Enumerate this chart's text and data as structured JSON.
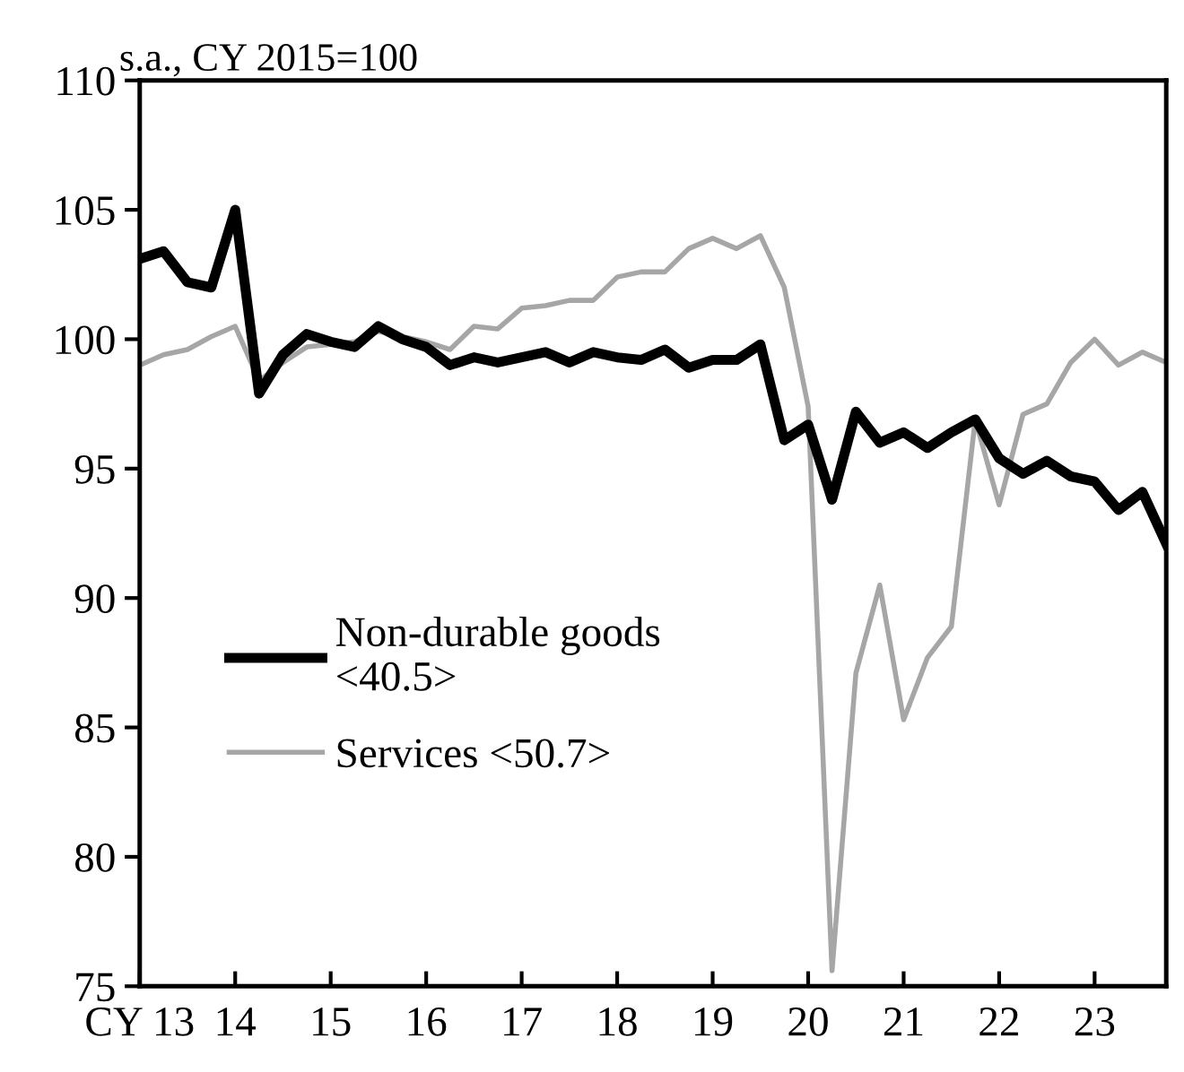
{
  "chart_data": {
    "type": "line",
    "title": "s.a., CY 2015=100",
    "x": [
      13,
      13.25,
      13.5,
      13.75,
      14,
      14.25,
      14.5,
      14.75,
      15,
      15.25,
      15.5,
      15.75,
      16,
      16.25,
      16.5,
      16.75,
      17,
      17.25,
      17.5,
      17.75,
      18,
      18.25,
      18.5,
      18.75,
      19,
      19.25,
      19.5,
      19.75,
      20,
      20.25,
      20.5,
      20.75,
      21,
      21.25,
      21.5,
      21.75,
      22,
      22.25,
      22.5,
      22.75,
      23,
      23.25,
      23.5,
      23.75
    ],
    "series": [
      {
        "name": "Non-durable goods\n<40.5>",
        "color": "#000000",
        "values": [
          103.1,
          103.4,
          102.2,
          102.0,
          105.0,
          97.9,
          99.4,
          100.2,
          99.9,
          99.7,
          100.5,
          100.0,
          99.7,
          99.0,
          99.3,
          99.1,
          99.3,
          99.5,
          99.1,
          99.5,
          99.3,
          99.2,
          99.6,
          98.9,
          99.2,
          99.2,
          99.8,
          96.1,
          96.7,
          93.8,
          97.2,
          96.0,
          96.4,
          95.8,
          96.4,
          96.9,
          95.4,
          94.8,
          95.3,
          94.7,
          94.5,
          93.4,
          94.1,
          92.1
        ]
      },
      {
        "name": "Services <50.7>",
        "color": "#a6a6a6",
        "values": [
          99.0,
          99.4,
          99.6,
          100.1,
          100.5,
          98.4,
          99.1,
          99.7,
          99.8,
          99.9,
          100.3,
          100.1,
          99.9,
          99.6,
          100.5,
          100.4,
          101.2,
          101.3,
          101.5,
          101.5,
          102.4,
          102.6,
          102.6,
          103.5,
          103.9,
          103.5,
          104.0,
          102.0,
          97.4,
          75.6,
          87.1,
          90.5,
          85.3,
          87.7,
          88.9,
          96.9,
          93.6,
          97.1,
          97.5,
          99.1,
          100.0,
          99.0,
          99.5,
          99.1
        ]
      }
    ],
    "xlim": [
      13,
      23.75
    ],
    "xticks": [
      {
        "value": 13,
        "label": "CY 13"
      },
      14,
      15,
      16,
      17,
      18,
      19,
      20,
      21,
      22,
      23
    ],
    "ylim": [
      75,
      110
    ],
    "yticks": [
      75,
      80,
      85,
      90,
      95,
      100,
      105,
      110
    ],
    "grid": false,
    "legend": "left",
    "marker": "none",
    "line_style": "solid"
  }
}
